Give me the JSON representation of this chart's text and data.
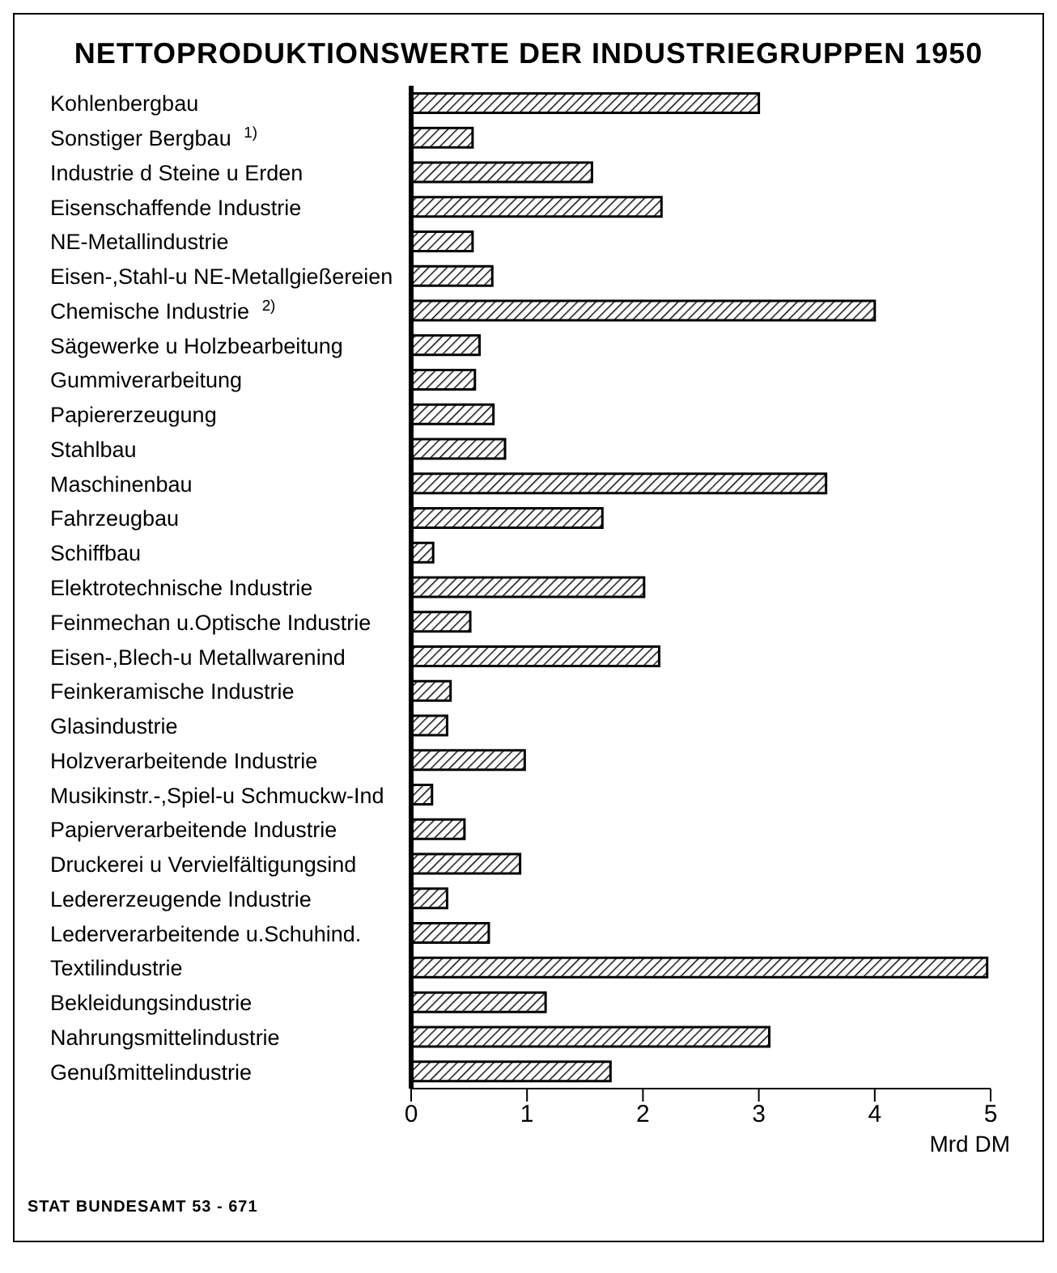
{
  "chart_data": {
    "type": "bar",
    "orientation": "horizontal",
    "title": "NETTOPRODUKTIONSWERTE DER INDUSTRIEGRUPPEN 1950",
    "xlabel": "Mrd DM",
    "categories": [
      "Kohlenbergbau",
      "Sonstiger Bergbau $^{1)}$",
      "Industrie d Steine u Erden",
      "Eisenschaffende Industrie",
      "NE-Metallindustrie",
      "Eisen-,Stahl-u NE-Metallgießereien",
      "Chemische Industrie $^{2)}$",
      "Sägewerke u Holzbearbeitung",
      "Gummiverarbeitung",
      "Papiererzeugung",
      "Stahlbau",
      "Maschinenbau",
      "Fahrzeugbau",
      "Schiffbau",
      "Elektrotechnische Industrie",
      "Feinmechan u.Optische Industrie",
      "Eisen-,Blech-u Metallwarenind",
      "Feinkeramische Industrie",
      "Glasindustrie",
      "Holzverarbeitende Industrie",
      "Musikinstr.-,Spiel-u Schmuckw-Ind",
      "Papierverarbeitende Industrie",
      "Druckerei u Vervielfältigungsind",
      "Ledererzeugende Industrie",
      "Lederverarbeitende u.Schuhind.",
      "Textilindustrie",
      "Bekleidungsindustrie",
      "Nahrungsmittelindustrie",
      "Genußmittelindustrie"
    ],
    "values": [
      3.0,
      0.53,
      1.56,
      2.16,
      0.53,
      0.7,
      4.0,
      0.59,
      0.55,
      0.71,
      0.81,
      3.58,
      1.65,
      0.19,
      2.01,
      0.51,
      2.14,
      0.34,
      0.31,
      0.98,
      0.18,
      0.46,
      0.94,
      0.31,
      0.67,
      4.97,
      1.16,
      3.09,
      1.72
    ],
    "color": "#000000",
    "xlim": [
      0,
      5
    ],
    "xticks": [
      0,
      1,
      2,
      3,
      4,
      5
    ],
    "grid": false,
    "legend": false,
    "annotations": [
      "STAT BUNDESAMT 53 - 671"
    ]
  }
}
